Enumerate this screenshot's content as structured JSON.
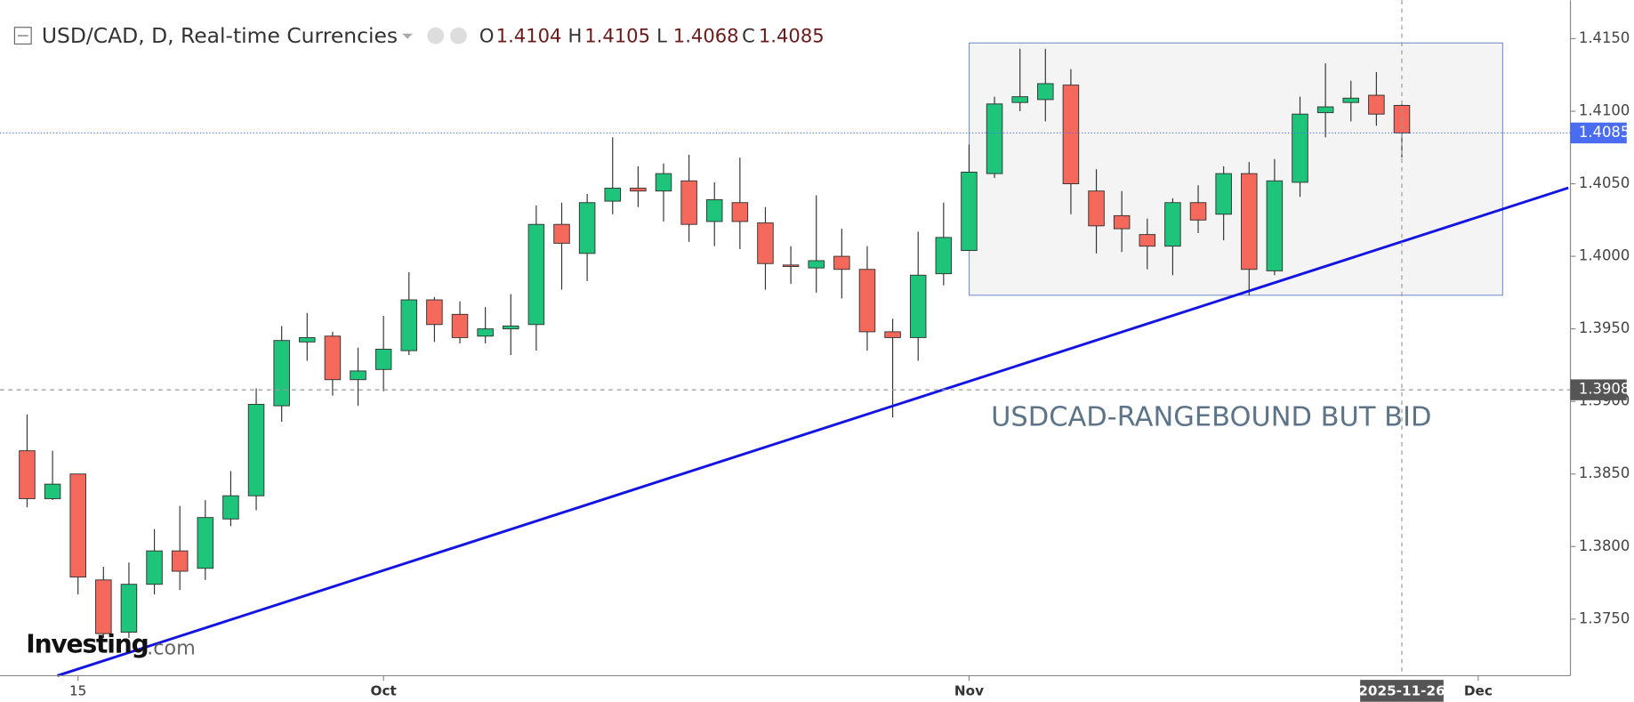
{
  "header": {
    "title": "USD/CAD, D, Real-time Currencies",
    "ohlc_letters": [
      "O",
      "H",
      "L",
      "C"
    ]
  },
  "chart_data": {
    "type": "candlestick",
    "categories": [
      null,
      null,
      "15",
      null,
      null,
      null,
      null,
      null,
      null,
      null,
      null,
      null,
      null,
      null,
      "Oct",
      null,
      null,
      null,
      null,
      null,
      null,
      null,
      null,
      null,
      null,
      null,
      null,
      null,
      null,
      null,
      null,
      null,
      null,
      null,
      null,
      null,
      null,
      "Nov",
      null,
      null,
      null,
      null,
      null,
      null,
      null,
      null,
      null,
      null,
      null,
      null,
      null,
      null,
      null,
      null,
      null,
      null,
      null,
      "Dec"
    ],
    "open": [
      1.3866,
      1.3833,
      1.385,
      1.3777,
      1.3741,
      1.3774,
      1.3797,
      1.3785,
      1.3819,
      1.3835,
      1.3897,
      1.3941,
      1.3945,
      1.3915,
      1.3922,
      1.3935,
      1.397,
      1.396,
      1.3945,
      1.395,
      1.3953,
      1.4022,
      1.4002,
      1.4038,
      1.4047,
      1.4045,
      1.4052,
      1.4024,
      1.4037,
      1.4023,
      1.3994,
      1.3992,
      1.4,
      1.3991,
      1.3948,
      1.3944,
      1.3988,
      1.4004,
      1.4057,
      1.4106,
      1.4108,
      1.4118,
      1.4045,
      1.4028,
      1.4015,
      1.4007,
      1.4037,
      1.4029,
      1.4057,
      1.399,
      1.4051,
      1.4099,
      1.4106,
      1.4111,
      1.4104,
      null,
      null,
      null
    ],
    "high": [
      1.3891,
      1.3866,
      1.385,
      1.3786,
      1.3789,
      1.3812,
      1.3828,
      1.3832,
      1.3852,
      1.3909,
      1.3952,
      1.3961,
      1.3948,
      1.3937,
      1.3959,
      1.3989,
      1.3972,
      1.3969,
      1.3965,
      1.3974,
      1.4035,
      1.4037,
      1.4043,
      1.4082,
      1.4062,
      1.4064,
      1.407,
      1.4051,
      1.4068,
      1.4034,
      1.4007,
      1.4042,
      1.4019,
      1.4007,
      1.3957,
      1.4017,
      1.4037,
      1.4077,
      1.411,
      1.4143,
      1.4143,
      1.4129,
      1.406,
      1.4045,
      1.4026,
      1.404,
      1.4049,
      1.4062,
      1.4065,
      1.4067,
      1.411,
      1.4133,
      1.4121,
      1.4127,
      1.4105,
      null,
      null,
      null
    ],
    "low": [
      1.3827,
      1.3832,
      1.3767,
      1.3737,
      1.3737,
      1.3767,
      1.377,
      1.3777,
      1.3814,
      1.3825,
      1.3886,
      1.3928,
      1.3904,
      1.3897,
      1.3907,
      1.3932,
      1.3941,
      1.394,
      1.394,
      1.3932,
      1.3935,
      1.3977,
      1.3983,
      1.4029,
      1.4034,
      1.4024,
      1.401,
      1.4007,
      1.4005,
      1.3977,
      1.3981,
      1.3975,
      1.3971,
      1.3935,
      1.3889,
      1.3928,
      1.398,
      1.4004,
      1.4054,
      1.41,
      1.4093,
      1.4029,
      1.4002,
      1.4003,
      1.3991,
      1.3987,
      1.4016,
      1.4011,
      1.3973,
      1.3987,
      1.4041,
      1.4082,
      1.4093,
      1.409,
      1.4068,
      null,
      null,
      null
    ],
    "close": [
      1.3833,
      1.3843,
      1.3779,
      1.374,
      1.3774,
      1.3797,
      1.3783,
      1.382,
      1.3835,
      1.3898,
      1.3942,
      1.3944,
      1.3915,
      1.3921,
      1.3936,
      1.397,
      1.3953,
      1.3944,
      1.395,
      1.3952,
      1.4022,
      1.4009,
      1.4037,
      1.4047,
      1.4045,
      1.4057,
      1.4022,
      1.4039,
      1.4024,
      1.3995,
      1.3993,
      1.3997,
      1.3991,
      1.3948,
      1.3944,
      1.3987,
      1.4013,
      1.4058,
      1.4105,
      1.411,
      1.4119,
      1.405,
      1.4021,
      1.4019,
      1.4007,
      1.4037,
      1.4025,
      1.4057,
      1.3991,
      1.4052,
      1.4098,
      1.4103,
      1.4109,
      1.4098,
      1.4085,
      null,
      null,
      null
    ],
    "colors": {
      "up": "#1ec47a",
      "down": "#f4695c"
    },
    "ylim": [
      1.3711,
      1.417
    ],
    "yticks": [
      {
        "value": 1.375,
        "label": "1.3750"
      },
      {
        "value": 1.38,
        "label": "1.3800"
      },
      {
        "value": 1.385,
        "label": "1.3850"
      },
      {
        "value": 1.39,
        "label": "1.3900"
      },
      {
        "value": 1.395,
        "label": "1.3950"
      },
      {
        "value": 1.4,
        "label": "1.4000"
      },
      {
        "value": 1.405,
        "label": "1.4050"
      },
      {
        "value": 1.41,
        "label": "1.4100"
      },
      {
        "value": 1.415,
        "label": "1.4150"
      }
    ],
    "grid": false,
    "annotation": "USDCAD-RANGEBOUND BUT BID",
    "crosshair": {
      "x_label": "2025-11-26",
      "y": 1.3908
    }
  },
  "logo": {
    "name": "Investing",
    "suffix": ".com"
  }
}
